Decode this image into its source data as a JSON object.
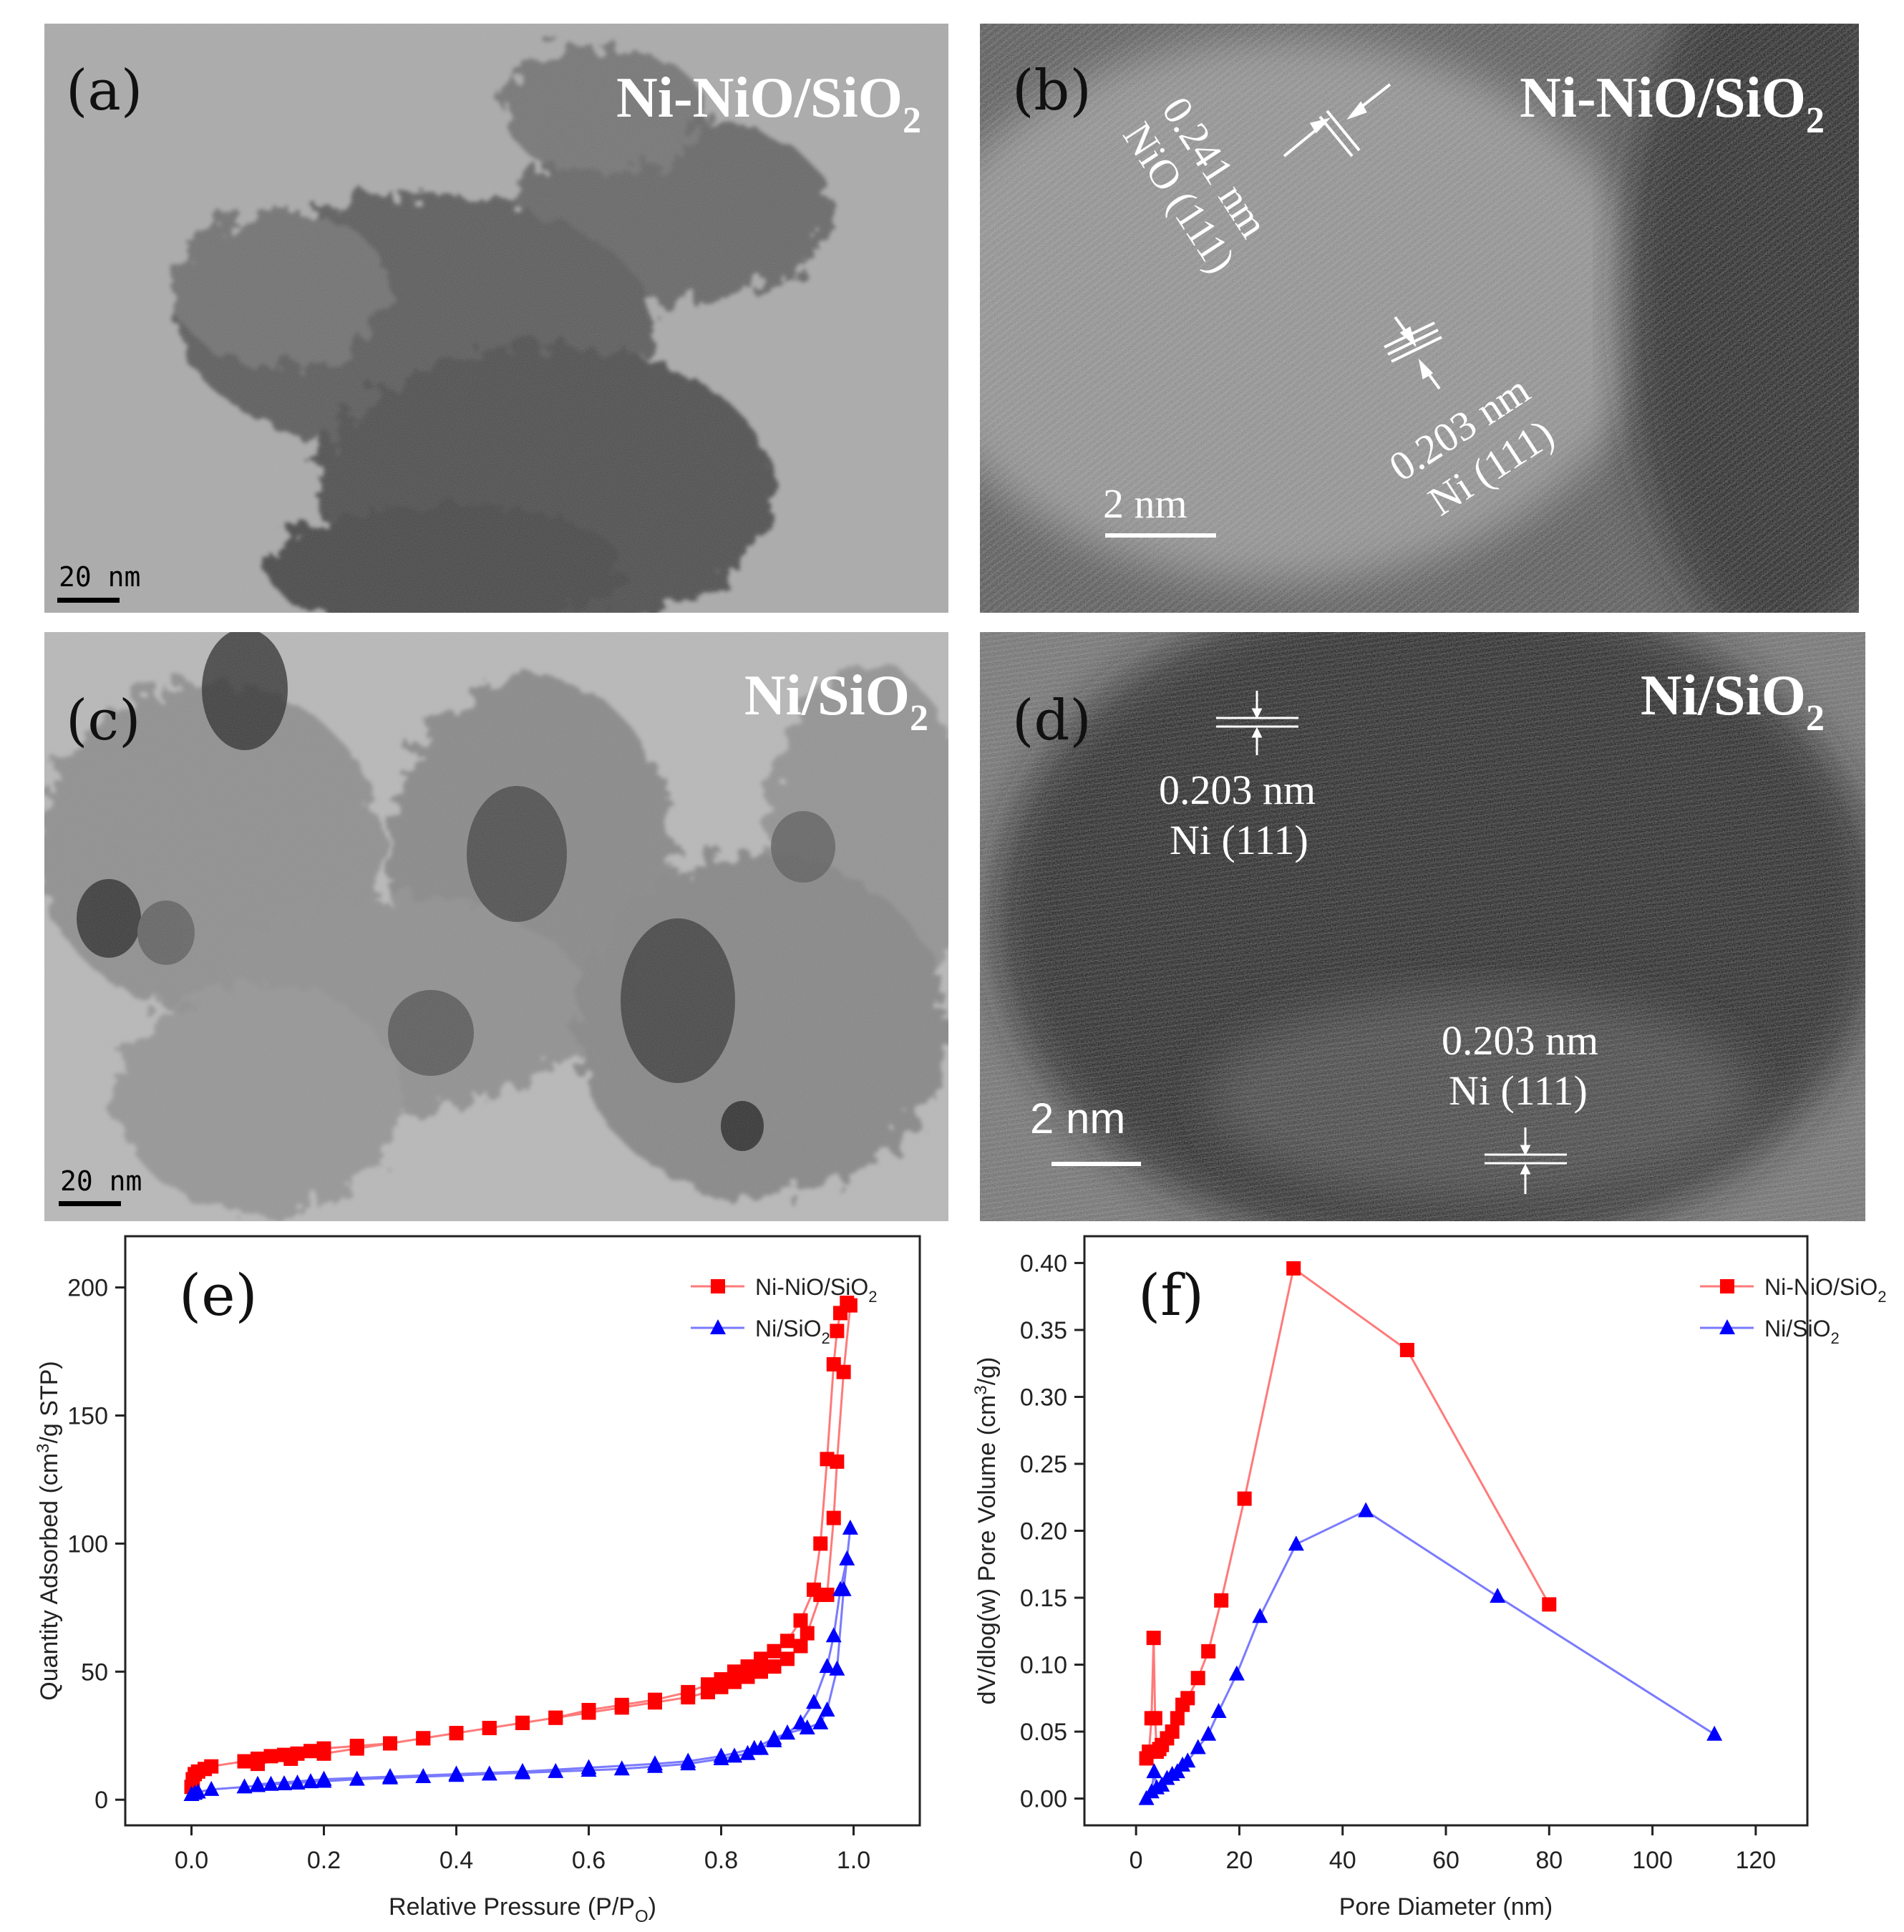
{
  "panels": {
    "a": {
      "letter": "(a)",
      "sample": "Ni-NiO/SiO",
      "sample_sub": "2",
      "scale": "20 nm"
    },
    "b": {
      "letter": "(b)",
      "sample": "Ni-NiO/SiO",
      "sample_sub": "2",
      "scale": "2 nm",
      "fringe1_spacing": "0.241 nm",
      "fringe1_plane": "NiO (111)",
      "fringe2_spacing": "0.203 nm",
      "fringe2_plane": "Ni (111)"
    },
    "c": {
      "letter": "(c)",
      "sample": "Ni/SiO",
      "sample_sub": "2",
      "scale": "20 nm"
    },
    "d": {
      "letter": "(d)",
      "sample": "Ni/SiO",
      "sample_sub": "2",
      "scale": "2 nm",
      "fringe1_spacing": "0.203 nm",
      "fringe1_plane": "Ni (111)",
      "fringe2_spacing": "0.203 nm",
      "fringe2_plane": "Ni (111)"
    }
  },
  "colors": {
    "series1": "#ff0000",
    "series2": "#0000ff",
    "series1_line": "#ff7a7a",
    "series2_line": "#7a7aff"
  },
  "chart_data": [
    {
      "id": "e",
      "letter": "(e)",
      "type": "line",
      "xlabel": "Relative Pressure (P/P",
      "xlabel_sub": "O",
      "xlabel_end": ")",
      "ylabel": "Quantity Adsorbed (cm",
      "ylabel_sup": "3",
      "ylabel_end": "/g STP)",
      "xlim": [
        -0.1,
        1.1
      ],
      "ylim": [
        -10,
        220
      ],
      "xticks": [
        "0.0",
        "0.2",
        "0.4",
        "0.6",
        "0.8",
        "1.0"
      ],
      "yticks": [
        "0",
        "50",
        "100",
        "150",
        "200"
      ],
      "legend": {
        "position": "top-right",
        "entries": [
          {
            "label": "Ni-NiO/SiO",
            "sub": "2"
          },
          {
            "label": "Ni/SiO",
            "sub": "2"
          }
        ]
      },
      "series": [
        {
          "name": "Ni-NiO/SiO2",
          "marker": "square",
          "x": [
            0.0,
            0.002,
            0.005,
            0.01,
            0.02,
            0.03,
            0.08,
            0.1,
            0.12,
            0.14,
            0.16,
            0.18,
            0.2,
            0.25,
            0.3,
            0.35,
            0.4,
            0.45,
            0.5,
            0.55,
            0.6,
            0.65,
            0.7,
            0.75,
            0.78,
            0.8,
            0.82,
            0.84,
            0.86,
            0.88,
            0.9,
            0.92,
            0.94,
            0.95,
            0.96,
            0.97,
            0.975,
            0.98,
            0.99,
            0.995,
            0.985,
            0.975,
            0.97,
            0.96,
            0.95,
            0.93,
            0.92,
            0.9,
            0.88,
            0.86,
            0.84,
            0.82,
            0.8,
            0.78,
            0.75,
            0.7,
            0.65,
            0.6,
            0.55,
            0.5,
            0.45,
            0.4,
            0.35,
            0.3,
            0.25,
            0.2,
            0.15,
            0.1
          ],
          "y": [
            5,
            8,
            10,
            11,
            12,
            13,
            15,
            16,
            17,
            17.5,
            18,
            19,
            20,
            21,
            22,
            24,
            26,
            28,
            30,
            32,
            35,
            37,
            39,
            42,
            45,
            47,
            50,
            52,
            55,
            58,
            62,
            70,
            82,
            100,
            133,
            170,
            183,
            190,
            194,
            193,
            167,
            132,
            110,
            80,
            80,
            65,
            60,
            55,
            52,
            50,
            48,
            46,
            44,
            42,
            40,
            38,
            36,
            34,
            32,
            30,
            28,
            26,
            24,
            22,
            20,
            18,
            16,
            14
          ]
        },
        {
          "name": "Ni/SiO2",
          "marker": "triangle",
          "x": [
            0.0,
            0.005,
            0.01,
            0.03,
            0.08,
            0.1,
            0.12,
            0.14,
            0.16,
            0.18,
            0.2,
            0.25,
            0.3,
            0.35,
            0.4,
            0.45,
            0.5,
            0.55,
            0.6,
            0.65,
            0.7,
            0.75,
            0.8,
            0.82,
            0.84,
            0.86,
            0.88,
            0.9,
            0.92,
            0.94,
            0.96,
            0.97,
            0.98,
            0.99,
            0.995,
            0.985,
            0.975,
            0.96,
            0.95,
            0.93,
            0.9,
            0.88,
            0.85,
            0.8,
            0.75,
            0.7,
            0.6,
            0.5,
            0.4,
            0.3,
            0.2,
            0.1
          ],
          "y": [
            2,
            2.5,
            3,
            4,
            5,
            5.5,
            6,
            6.2,
            6.5,
            7,
            7.2,
            8,
            8.5,
            9,
            9.5,
            10,
            10.5,
            11,
            11.5,
            12,
            13,
            14,
            16,
            17,
            18,
            20,
            23,
            26,
            30,
            38,
            52,
            64,
            82,
            94,
            106,
            82,
            51,
            35,
            30,
            28,
            26,
            24,
            20,
            17,
            15,
            14,
            12.5,
            11,
            10,
            9,
            8,
            6
          ]
        }
      ]
    },
    {
      "id": "f",
      "letter": "(f)",
      "type": "line",
      "xlabel": "Pore Diameter (nm)",
      "ylabel": "dV/dlog(w) Pore Volume (cm",
      "ylabel_sup": "3",
      "ylabel_end": "/g)",
      "xlim": [
        -10,
        130
      ],
      "ylim": [
        -0.02,
        0.42
      ],
      "xticks": [
        "0",
        "20",
        "40",
        "60",
        "80",
        "100",
        "120"
      ],
      "yticks": [
        "0.00",
        "0.05",
        "0.10",
        "0.15",
        "0.20",
        "0.25",
        "0.30",
        "0.35",
        "0.40"
      ],
      "legend": {
        "position": "top-right",
        "entries": [
          {
            "label": "Ni-NiO/SiO",
            "sub": "2"
          },
          {
            "label": "Ni/SiO",
            "sub": "2"
          }
        ]
      },
      "series": [
        {
          "name": "Ni-NiO/SiO2",
          "marker": "square",
          "x": [
            2,
            2.5,
            3,
            3.4,
            3.7,
            4,
            4.5,
            5,
            6,
            7,
            8,
            9,
            10,
            12,
            14,
            16.5,
            21,
            30.5,
            52.5,
            80
          ],
          "y": [
            0.03,
            0.035,
            0.06,
            0.12,
            0.06,
            0.035,
            0.037,
            0.04,
            0.045,
            0.05,
            0.06,
            0.07,
            0.075,
            0.09,
            0.11,
            0.148,
            0.224,
            0.396,
            0.335,
            0.145
          ]
        },
        {
          "name": "Ni/SiO2",
          "marker": "triangle",
          "x": [
            2,
            3,
            3.5,
            4,
            5,
            6,
            7,
            8,
            9,
            10,
            12,
            14,
            16,
            19.5,
            24,
            31,
            44.5,
            70,
            112
          ],
          "y": [
            0.0,
            0.005,
            0.02,
            0.008,
            0.01,
            0.015,
            0.018,
            0.02,
            0.025,
            0.028,
            0.038,
            0.048,
            0.065,
            0.093,
            0.136,
            0.19,
            0.215,
            0.151,
            0.048
          ]
        }
      ]
    }
  ]
}
